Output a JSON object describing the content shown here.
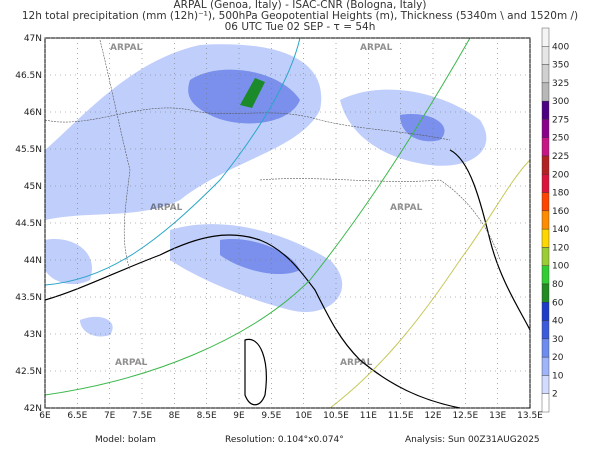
{
  "header": {
    "line1": "ARPAL (Genoa, Italy)  -  ISAC-CNR (Bologna, Italy)",
    "line2": "12h total precipitation (mm (12h)⁻¹), 500hPa Geopotential Heights (m), Thickness (5340m \\ and 1520m /)",
    "line3": "06 UTC Tue 02 SEP  -  τ = 54h"
  },
  "map": {
    "lat_labels": [
      "47N",
      "46.5N",
      "46N",
      "45.5N",
      "45N",
      "44.5N",
      "44N",
      "43.5N",
      "43N",
      "42.5N",
      "42N"
    ],
    "lon_labels": [
      "6E",
      "6.5E",
      "7E",
      "7.5E",
      "8E",
      "8.5E",
      "9E",
      "9.5E",
      "10E",
      "10.5E",
      "11E",
      "11.5E",
      "12E",
      "12.5E",
      "13E",
      "13.5E"
    ],
    "watermark": "ARPAL"
  },
  "colorbar": {
    "levels": [
      "400",
      "350",
      "325",
      "300",
      "275",
      "250",
      "225",
      "200",
      "180",
      "160",
      "140",
      "120",
      "100",
      "80",
      "60",
      "40",
      "30",
      "20",
      "10",
      "2"
    ],
    "colors": [
      "#f4f4f4",
      "#e6e6e6",
      "#d0d0d0",
      "#b8b8b8",
      "#4b0082",
      "#8b008b",
      "#c71585",
      "#b22222",
      "#dc143c",
      "#ff4500",
      "#ff8c00",
      "#ffd700",
      "#9acd32",
      "#32cd32",
      "#228b22",
      "#1e3cc8",
      "#3c5adc",
      "#6e8cf0",
      "#a0b4fa",
      "#d2dcff",
      "#ffffff"
    ]
  },
  "footer": {
    "model": "Model:  bolam",
    "resolution": "Resolution:  0.104°x0.074°",
    "analysis": "Analysis:  Sun  00Z31AUG2025"
  }
}
